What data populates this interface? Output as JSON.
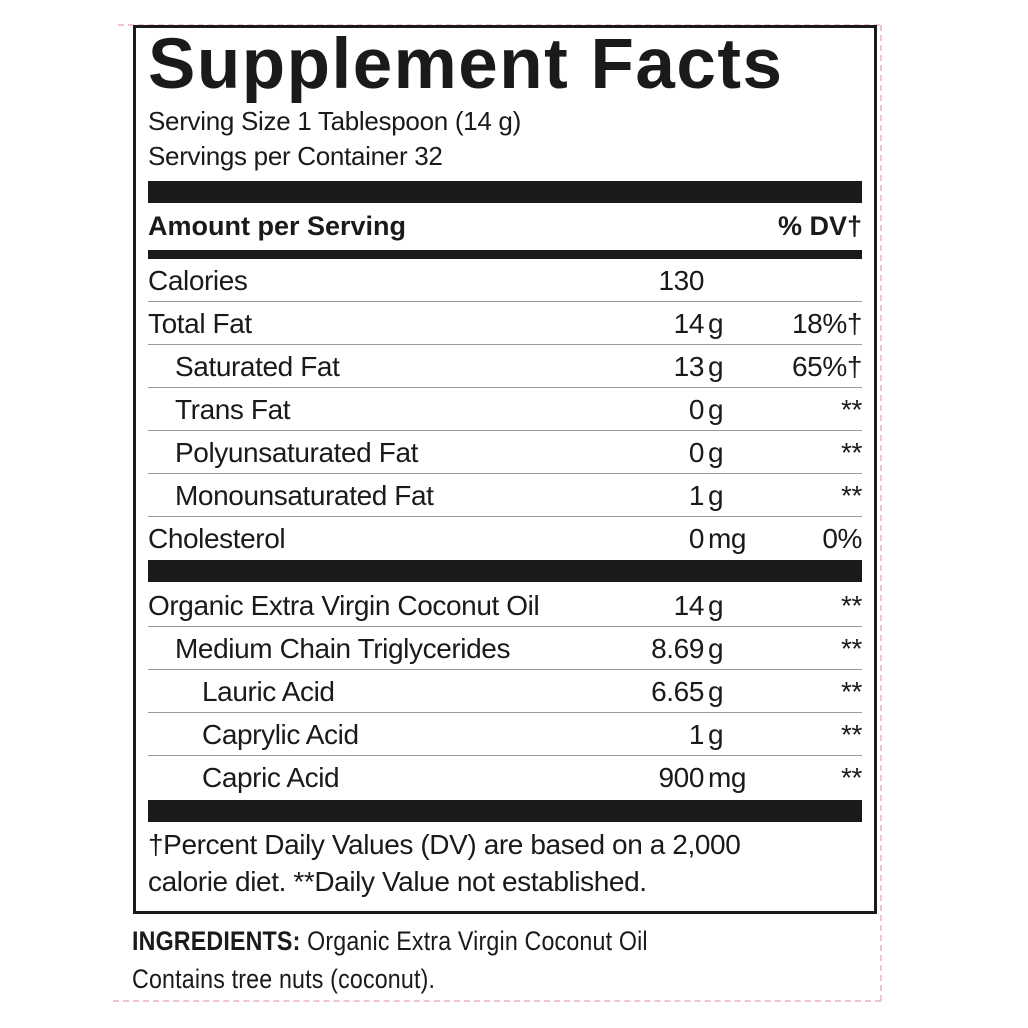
{
  "title": "Supplement Facts",
  "serving_size": "Serving Size 1 Tablespoon (14 g)",
  "servings_per_container": "Servings per Container 32",
  "header": {
    "amount": "Amount per Serving",
    "dv": "% DV†"
  },
  "nutrients": [
    {
      "name": "Calories",
      "num": "130",
      "unit": "",
      "dv": "",
      "indent": 0
    },
    {
      "name": "Total Fat",
      "num": "14",
      "unit": "g",
      "dv": "18%†",
      "indent": 0
    },
    {
      "name": "Saturated Fat",
      "num": "13",
      "unit": "g",
      "dv": "65%†",
      "indent": 1
    },
    {
      "name": "Trans Fat",
      "num": "0",
      "unit": "g",
      "dv": "**",
      "indent": 1
    },
    {
      "name": "Polyunsaturated Fat",
      "num": "0",
      "unit": "g",
      "dv": "**",
      "indent": 1
    },
    {
      "name": "Monounsaturated Fat",
      "num": "1",
      "unit": "g",
      "dv": "**",
      "indent": 1
    },
    {
      "name": "Cholesterol",
      "num": "0",
      "unit": "mg",
      "dv": "0%",
      "indent": 0
    }
  ],
  "other": [
    {
      "name": "Organic Extra Virgin Coconut Oil",
      "num": "14",
      "unit": "g",
      "dv": "**",
      "indent": 0
    },
    {
      "name": "Medium Chain Triglycerides",
      "num": "8.69",
      "unit": "g",
      "dv": "**",
      "indent": 1
    },
    {
      "name": "Lauric Acid",
      "num": "6.65",
      "unit": "g",
      "dv": "**",
      "indent": 2
    },
    {
      "name": "Caprylic Acid",
      "num": "1",
      "unit": "g",
      "dv": "**",
      "indent": 2
    },
    {
      "name": "Capric Acid",
      "num": "900",
      "unit": "mg",
      "dv": "**",
      "indent": 2
    }
  ],
  "footnote": {
    "line1": "†Percent Daily Values (DV) are based on a 2,000",
    "line2": "calorie diet. **Daily Value not established."
  },
  "ingredients": {
    "label": "INGREDIENTS:",
    "text": " Organic Extra Virgin Coconut Oil",
    "allergen": "Contains tree nuts (coconut)."
  }
}
